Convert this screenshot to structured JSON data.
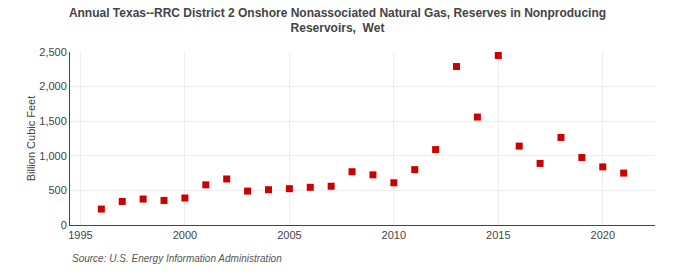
{
  "chart_data": {
    "type": "scatter",
    "title": "Annual Texas--RRC District 2 Onshore Nonassociated Natural Gas, Reserves in Nonproducing\nReservoirs,  Wet",
    "ylabel": "Billion Cubic Feet",
    "annotations": [
      "Source: U.S. Energy Information Administration"
    ],
    "x": [
      1996,
      1997,
      1998,
      1999,
      2000,
      2001,
      2002,
      2003,
      2004,
      2005,
      2006,
      2007,
      2008,
      2009,
      2010,
      2011,
      2012,
      2013,
      2014,
      2015,
      2016,
      2017,
      2018,
      2019,
      2020,
      2021
    ],
    "values": [
      230,
      340,
      375,
      355,
      390,
      580,
      665,
      490,
      510,
      525,
      545,
      560,
      770,
      725,
      610,
      800,
      1090,
      2290,
      1560,
      2450,
      1140,
      890,
      1265,
      975,
      840,
      750
    ],
    "color": "#cc0000",
    "marker": "square",
    "grid": true,
    "xlim": [
      1994.5,
      2022.5
    ],
    "xticks": [
      1995,
      2000,
      2005,
      2010,
      2015,
      2020
    ],
    "ylim": [
      0,
      2500
    ],
    "yticks": [
      0,
      500,
      {
        "value": 1000,
        "label": "1,000"
      },
      {
        "value": 1500,
        "label": "1,500"
      },
      {
        "value": 2000,
        "label": "2,000"
      },
      {
        "value": 2500,
        "label": "2,500"
      }
    ]
  }
}
